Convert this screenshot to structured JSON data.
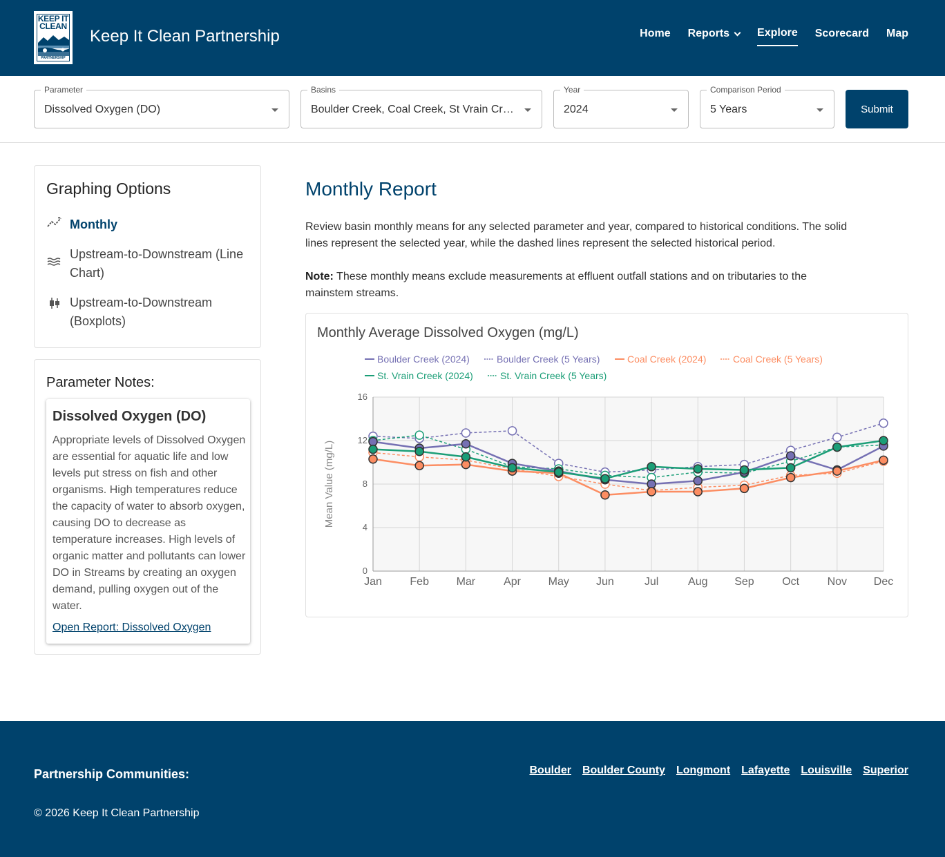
{
  "header": {
    "logo_text": "KEEP IT CLEAN",
    "logo_sub": "PARTNERSHIP",
    "title": "Keep It Clean Partnership",
    "nav": [
      "Home",
      "Reports",
      "Explore",
      "Scorecard",
      "Map"
    ],
    "active_nav": "Explore"
  },
  "filters": {
    "parameter": {
      "label": "Parameter",
      "value": "Dissolved Oxygen (DO)"
    },
    "basins": {
      "label": "Basins",
      "value": "Boulder Creek, Coal Creek, St Vrain Creek"
    },
    "year": {
      "label": "Year",
      "value": "2024"
    },
    "comparison": {
      "label": "Comparison Period",
      "value": "5 Years"
    },
    "submit": "Submit"
  },
  "graphing_options": {
    "title": "Graphing Options",
    "items": [
      {
        "label": "Monthly",
        "icon": "sparkline-icon",
        "active": true
      },
      {
        "label": "Upstream-to-Downstream (Line Chart)",
        "icon": "waves-icon",
        "active": false
      },
      {
        "label": "Upstream-to-Downstream (Boxplots)",
        "icon": "boxplot-icon",
        "active": false
      }
    ]
  },
  "parameter_notes": {
    "title": "Parameter Notes:",
    "heading": "Dissolved Oxygen (DO)",
    "body": "Appropriate levels of Dissolved Oxygen are essential for aquatic life and low levels put stress on fish and other organisms. High temperatures reduce the capacity of water to absorb oxygen, causing DO to decrease as temperature increases. High levels of organic matter and pollutants can lower DO in Streams by creating an oxygen demand, pulling oxygen out of the water.",
    "link": "Open Report: Dissolved Oxygen"
  },
  "main": {
    "title": "Monthly Report",
    "description": "Review basin monthly means for any selected parameter and year, compared to historical conditions. The solid lines represent the selected year, while the dashed lines represent the selected historical period.",
    "note_label": "Note:",
    "note_text": " These monthly means exclude measurements at effluent outfall stations and on tributaries to the mainstem streams."
  },
  "chart_data": {
    "type": "line",
    "title": "Monthly Average Dissolved Oxygen (mg/L)",
    "ylabel": "Mean Value (mg/L)",
    "xlabel": "",
    "ylim": [
      0,
      16
    ],
    "yticks": [
      0,
      4,
      8,
      12,
      16
    ],
    "categories": [
      "Jan",
      "Feb",
      "Mar",
      "Apr",
      "May",
      "Jun",
      "Jul",
      "Aug",
      "Sep",
      "Oct",
      "Nov",
      "Dec"
    ],
    "grid": true,
    "legend_position": "top",
    "series": [
      {
        "name": "Boulder Creek (2024)",
        "color": "#7570b3",
        "dashed": false,
        "values": [
          11.9,
          11.3,
          11.7,
          9.9,
          9.2,
          8.4,
          8.0,
          8.3,
          9.1,
          10.6,
          9.3,
          11.5
        ]
      },
      {
        "name": "Boulder Creek (5 Years)",
        "color": "#7570b3",
        "dashed": true,
        "values": [
          12.4,
          12.2,
          12.7,
          12.9,
          9.9,
          9.1,
          9.3,
          9.6,
          9.8,
          11.1,
          12.3,
          13.6
        ]
      },
      {
        "name": "Coal Creek (2024)",
        "color": "#fc8d62",
        "dashed": false,
        "values": [
          10.3,
          9.7,
          9.8,
          9.2,
          9.0,
          7.0,
          7.3,
          7.3,
          7.6,
          8.6,
          9.2,
          10.2
        ]
      },
      {
        "name": "Coal Creek (5 Years)",
        "color": "#fc8d62",
        "dashed": true,
        "values": [
          10.9,
          10.5,
          10.2,
          9.4,
          8.7,
          8.0,
          7.4,
          7.7,
          7.9,
          8.8,
          9.0,
          10.1
        ]
      },
      {
        "name": "St. Vrain Creek (2024)",
        "color": "#1b9e77",
        "dashed": false,
        "values": [
          11.2,
          11.0,
          10.5,
          9.5,
          9.1,
          8.5,
          9.6,
          9.4,
          9.3,
          9.5,
          11.4,
          12.0
        ]
      },
      {
        "name": "St. Vrain Creek (5 Years)",
        "color": "#1b9e77",
        "dashed": true,
        "values": [
          12.0,
          12.5,
          11.2,
          9.6,
          9.4,
          8.8,
          8.6,
          9.1,
          9.0,
          10.1,
          11.4,
          11.6
        ]
      }
    ]
  },
  "footer": {
    "label": "Partnership Communities:",
    "links": [
      "Boulder",
      "Boulder County",
      "Longmont",
      "Lafayette",
      "Louisville",
      "Superior"
    ],
    "copyright": "© 2026 Keep It Clean Partnership"
  }
}
